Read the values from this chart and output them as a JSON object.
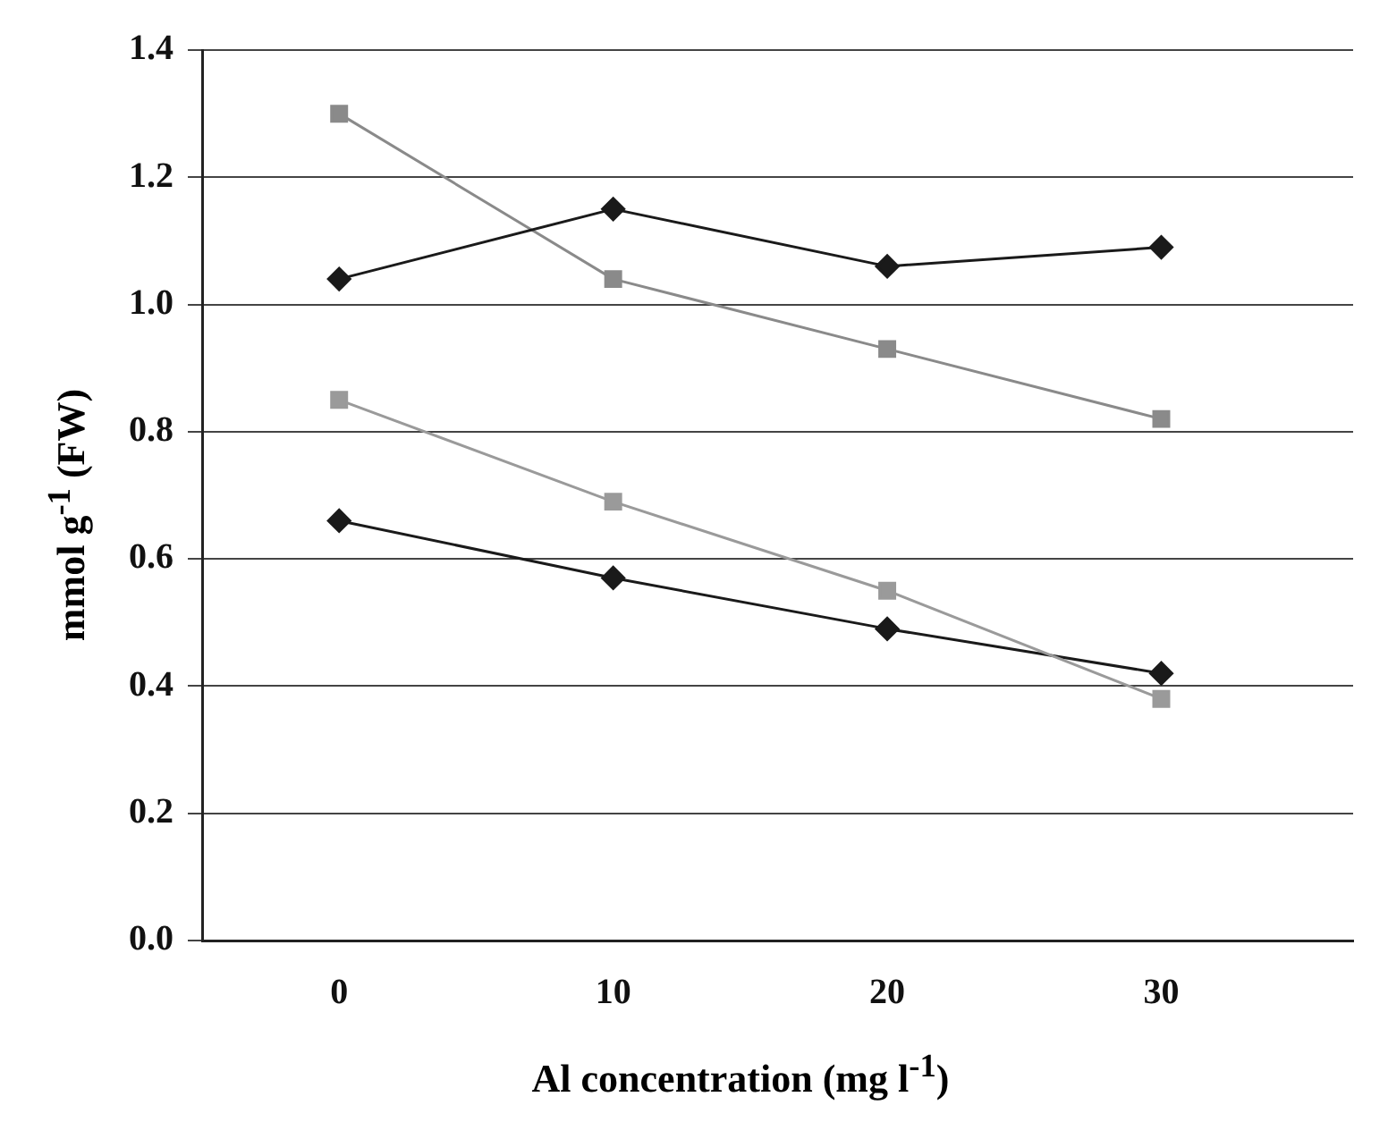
{
  "chart_data": {
    "type": "line",
    "xlabel": "Al concentration (mg l$^{-1}$)",
    "ylabel": "mmol g$^{-1}$ (FW)",
    "x": [
      0,
      10,
      20,
      30
    ],
    "xlim": [
      -5,
      37
    ],
    "xticks": [
      0,
      10,
      20,
      30
    ],
    "ylim": [
      0,
      1.4
    ],
    "yticks": [
      {
        "value": 0,
        "label": "0.0"
      },
      0.2,
      0.4,
      0.6,
      0.8,
      {
        "value": 1,
        "label": "1.0"
      },
      1.2,
      1.4
    ],
    "grid": "y",
    "legend": false,
    "line_style": "solid",
    "series": [
      {
        "color": "#1a1a1a",
        "marker": "diamond",
        "values": [
          1.04,
          1.15,
          1.06,
          1.09
        ]
      },
      {
        "color": "#8a8a8a",
        "marker": "square",
        "values": [
          1.3,
          1.04,
          0.93,
          0.82
        ]
      },
      {
        "color": "#9a9a9a",
        "marker": "square",
        "values": [
          0.85,
          0.69,
          0.55,
          0.38
        ]
      },
      {
        "color": "#1a1a1a",
        "marker": "diamond",
        "values": [
          0.66,
          0.57,
          0.49,
          0.42
        ]
      }
    ]
  }
}
